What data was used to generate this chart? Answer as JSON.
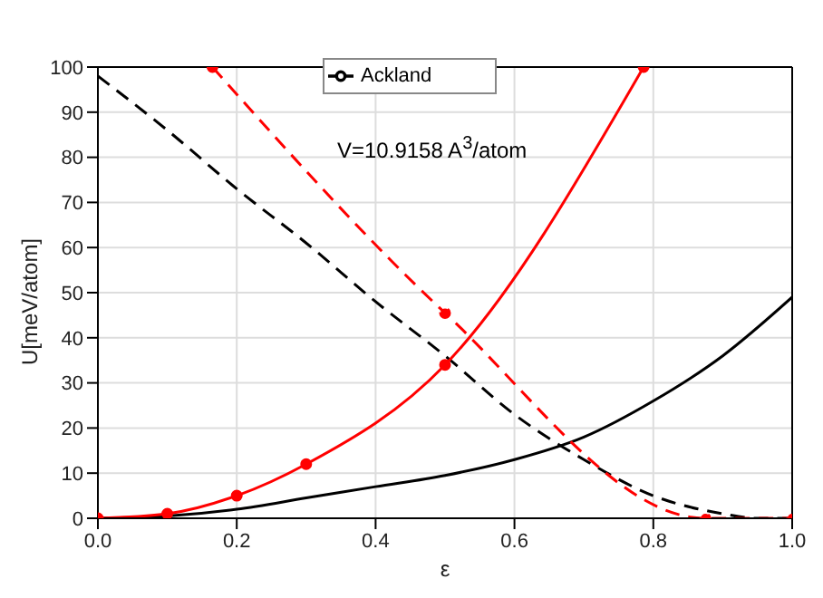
{
  "chart_data": {
    "type": "line",
    "xlabel": "ε",
    "ylabel": "U[meV/atom]",
    "annotations": [
      "V=10.9158 A$^{3}$/atom"
    ],
    "series": [
      {
        "name": "Ackland",
        "color": "#000000",
        "line_style": "solid",
        "marker": "none",
        "x": [
          0,
          0.1,
          0.2,
          0.3,
          0.4,
          0.5,
          0.6,
          0.7,
          0.8,
          0.9,
          1.0
        ],
        "values": [
          0,
          0.5,
          2,
          4.5,
          7,
          9.5,
          13,
          18,
          26,
          36,
          49
        ]
      },
      {
        "color": "#000000",
        "line_style": "dashed",
        "marker": "none",
        "x": [
          0,
          0.1,
          0.2,
          0.3,
          0.4,
          0.5,
          0.6,
          0.7,
          0.8,
          0.9,
          0.95,
          1.0
        ],
        "values": [
          98,
          86,
          73,
          61,
          48,
          36,
          23,
          13,
          5,
          1,
          0,
          0
        ]
      },
      {
        "color": "#ff0000",
        "line_style": "solid",
        "marker": "circle",
        "x": [
          0,
          0.1,
          0.2,
          0.3,
          0.5,
          0.786
        ],
        "values": [
          0,
          1,
          5,
          12,
          34,
          100
        ]
      },
      {
        "color": "#ff0000",
        "line_style": "dashed",
        "marker": "circle",
        "x": [
          0.165,
          0.5,
          0.875,
          1.0
        ],
        "values": [
          100,
          45.5,
          0,
          0
        ]
      }
    ],
    "xlim": [
      0,
      1
    ],
    "xticks": [
      {
        "value": 0,
        "label": "0.0"
      },
      {
        "value": 0.2,
        "label": "0.2"
      },
      {
        "value": 0.4,
        "label": "0.4"
      },
      {
        "value": 0.6,
        "label": "0.6"
      },
      {
        "value": 0.8,
        "label": "0.8"
      },
      {
        "value": 1,
        "label": "1.0"
      }
    ],
    "ylim": [
      0,
      100
    ],
    "yticks": [
      0,
      10,
      20,
      30,
      40,
      50,
      60,
      70,
      80,
      90,
      100
    ],
    "grid": true,
    "legend": "top"
  }
}
